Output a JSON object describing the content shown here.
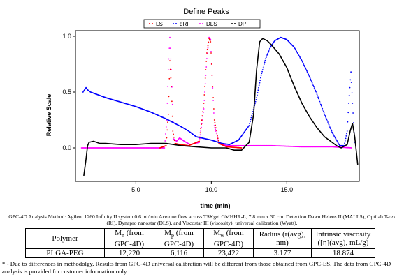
{
  "chart_data": {
    "type": "line",
    "title": "Define Peaks",
    "xlabel": "time (min)",
    "ylabel": "Relative Scale",
    "xlim": [
      1.0,
      19.8
    ],
    "ylim": [
      -0.3,
      1.05
    ],
    "x_ticks": [
      {
        "v": 5.0,
        "label": "5.0"
      },
      {
        "v": 10.0,
        "label": "10.0"
      },
      {
        "v": 15.0,
        "label": "15.0"
      }
    ],
    "y_ticks": [
      {
        "v": 0.0,
        "label": "0.0"
      },
      {
        "v": 0.5,
        "label": "0.5"
      },
      {
        "v": 1.0,
        "label": "1.0"
      }
    ],
    "grid": false,
    "legend_position": "top-center",
    "series": [
      {
        "name": "LS",
        "color": "#ff0000",
        "style": "dots",
        "x": [
          6.6,
          7.0,
          7.15,
          7.25,
          7.35,
          7.45,
          7.6,
          7.9,
          8.5,
          9.2,
          9.5,
          9.7,
          9.85,
          9.95,
          10.05,
          10.2,
          10.5,
          11.0,
          12.0
        ],
        "y": [
          0.0,
          0.02,
          0.3,
          0.78,
          0.55,
          0.15,
          0.04,
          0.03,
          0.02,
          0.06,
          0.4,
          0.85,
          0.98,
          0.95,
          0.65,
          0.25,
          0.04,
          0.01,
          0.0
        ]
      },
      {
        "name": "dRI",
        "color": "#0000ff",
        "style": "dots",
        "x": [
          1.5,
          1.6,
          1.7,
          1.8,
          2.0,
          3.0,
          4.0,
          5.0,
          6.0,
          7.0,
          8.0,
          8.5,
          9.0,
          10.0,
          10.7,
          11.2,
          11.8,
          12.5,
          13.0,
          13.3,
          13.6,
          13.9,
          14.2,
          14.6,
          15.0,
          15.5,
          16.0,
          16.5,
          17.0,
          17.5,
          18.0,
          18.5,
          18.8,
          19.0,
          19.1,
          19.25,
          19.35,
          19.5
        ],
        "y": [
          0.5,
          0.52,
          0.54,
          0.52,
          0.5,
          0.45,
          0.41,
          0.37,
          0.32,
          0.26,
          0.19,
          0.15,
          0.1,
          0.07,
          0.04,
          0.03,
          0.07,
          0.2,
          0.45,
          0.65,
          0.8,
          0.9,
          0.96,
          0.99,
          0.97,
          0.9,
          0.78,
          0.64,
          0.48,
          0.3,
          0.14,
          0.02,
          0.02,
          0.15,
          0.4,
          0.68,
          0.4,
          0.05
        ]
      },
      {
        "name": "DLS",
        "color": "#ff00ff",
        "style": "dots",
        "x": [
          1.4,
          2.0,
          4.0,
          6.0,
          6.9,
          7.05,
          7.15,
          7.25,
          7.35,
          7.5,
          7.7,
          7.9,
          8.2,
          8.6,
          9.2,
          9.5,
          9.7,
          9.85,
          9.95,
          10.05,
          10.2,
          10.5,
          11.0,
          12.0,
          14.0,
          16.0,
          18.0,
          19.3
        ],
        "y": [
          0.0,
          0.0,
          0.0,
          0.0,
          0.0,
          0.25,
          0.7,
          0.99,
          0.7,
          0.08,
          0.06,
          0.09,
          0.06,
          0.03,
          0.05,
          0.35,
          0.8,
          0.99,
          0.97,
          0.65,
          0.2,
          0.05,
          0.02,
          0.02,
          0.02,
          0.01,
          0.01,
          0.0
        ]
      },
      {
        "name": "DP",
        "color": "#000000",
        "style": "line",
        "x": [
          1.55,
          1.7,
          1.8,
          1.9,
          2.2,
          2.6,
          3.0,
          4.0,
          5.0,
          6.0,
          7.0,
          8.0,
          9.0,
          10.0,
          11.0,
          11.5,
          12.0,
          12.5,
          12.8,
          13.0,
          13.2,
          13.4,
          13.7,
          14.0,
          14.5,
          15.0,
          15.5,
          16.0,
          16.5,
          17.0,
          17.5,
          18.0,
          18.3,
          18.6,
          19.0,
          19.2,
          19.35,
          19.5,
          19.7
        ],
        "y": [
          -0.25,
          -0.1,
          0.02,
          0.05,
          0.06,
          0.04,
          0.04,
          0.03,
          0.03,
          0.04,
          0.04,
          0.02,
          0.01,
          0.0,
          0.0,
          -0.02,
          -0.02,
          0.05,
          0.3,
          0.7,
          0.95,
          0.98,
          0.96,
          0.92,
          0.84,
          0.72,
          0.55,
          0.4,
          0.28,
          0.18,
          0.1,
          0.05,
          0.02,
          0.0,
          0.03,
          0.15,
          0.22,
          0.1,
          -0.15
        ]
      }
    ]
  },
  "caption": "GPC-4D Analysis Method: Agilent 1260 Infinity II system 0.6 ml/min Acetone flow across TSKgel GMHHR-L, 7.8 mm x 30 cm. Detection Dawn Heleos II (MALLS), Optilab T-rex (RI), Dynapro nanostar (DLS), and Viscostar III (viscosity), universal calibration (Wyatt).",
  "table": {
    "headers": [
      "Polymer",
      "Mn (from GPC-4D)",
      "Mp (from GPC-4D)",
      "Mw (from GPC-4D)",
      "Radius (r(avg), nm)",
      "Intrinsic viscosity ([η](avg), mL/g)"
    ],
    "rows": [
      [
        "PLGA-PEG",
        "12,220",
        "6,116",
        "23,422",
        "3.177",
        "18.874"
      ]
    ]
  },
  "footnote": "* - Due to differences in methodolgy, Results from GPC-4D universal calibration will be different from those obtained from GPC-ES. The data from GPC-4D analysis is provided for customer information only."
}
